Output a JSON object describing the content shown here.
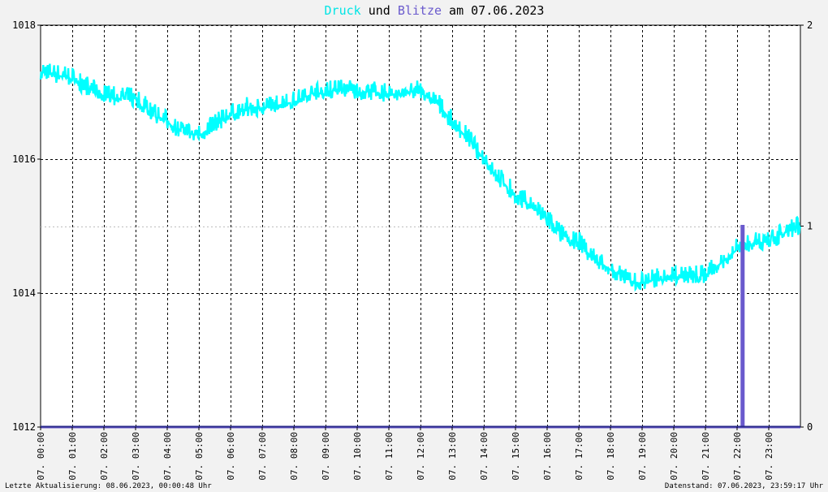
{
  "title": {
    "part1": "Druck",
    "part2": " und ",
    "part3": "Blitze",
    "part4": " am 07.06.2023"
  },
  "colors": {
    "pressure": "#00ffff",
    "lightning": "#6a5acd",
    "baseline": "#2a2a8a",
    "grid": "#000000",
    "background": "#f2f2f2",
    "plot_background": "#ffffff"
  },
  "footer": {
    "left": "Letzte Aktualisierung: 08.06.2023, 00:00:48 Uhr",
    "right": "Datenstand: 07.06.2023, 23:59:17 Uhr"
  },
  "chart_data": {
    "type": "line",
    "title": "Druck und Blitze am 07.06.2023",
    "x_unit": "hours",
    "xlim": [
      0,
      24
    ],
    "x_ticks": [
      0,
      1,
      2,
      3,
      4,
      5,
      6,
      7,
      8,
      9,
      10,
      11,
      12,
      13,
      14,
      15,
      16,
      17,
      18,
      19,
      20,
      21,
      22,
      23
    ],
    "x_tick_labels": [
      "07. 00:00",
      "07. 01:00",
      "07. 02:00",
      "07. 03:00",
      "07. 04:00",
      "07. 05:00",
      "07. 06:00",
      "07. 07:00",
      "07. 08:00",
      "07. 09:00",
      "07. 10:00",
      "07. 11:00",
      "07. 12:00",
      "07. 13:00",
      "07. 14:00",
      "07. 15:00",
      "07. 16:00",
      "07. 17:00",
      "07. 18:00",
      "07. 19:00",
      "07. 20:00",
      "07. 21:00",
      "07. 22:00",
      "07. 23:00"
    ],
    "y_left": {
      "range": [
        1012,
        1018
      ],
      "ticks": [
        1012,
        1014,
        1016,
        1018
      ]
    },
    "y_right": {
      "range": [
        0,
        2
      ],
      "ticks": [
        0,
        1,
        2
      ]
    },
    "grid": true,
    "series": [
      {
        "name": "Druck",
        "axis": "left",
        "x": [
          0,
          0.5,
          1,
          1.5,
          2,
          2.5,
          3,
          3.5,
          4,
          4.5,
          5,
          5.5,
          6,
          6.5,
          7,
          7.5,
          8,
          8.5,
          9,
          9.5,
          10,
          10.5,
          11,
          11.5,
          12,
          12.5,
          13,
          13.5,
          14,
          14.5,
          15,
          15.5,
          16,
          16.5,
          17,
          17.5,
          18,
          18.5,
          19,
          19.5,
          20,
          20.5,
          21,
          21.5,
          22,
          22.5,
          23,
          23.5,
          24
        ],
        "y": [
          1017.3,
          1017.25,
          1017.2,
          1017.05,
          1016.95,
          1016.9,
          1016.9,
          1016.7,
          1016.55,
          1016.4,
          1016.35,
          1016.5,
          1016.65,
          1016.75,
          1016.75,
          1016.8,
          1016.85,
          1016.95,
          1017.0,
          1017.05,
          1017.0,
          1017.0,
          1016.95,
          1017.0,
          1017.0,
          1016.85,
          1016.55,
          1016.3,
          1016.0,
          1015.7,
          1015.45,
          1015.3,
          1015.1,
          1014.85,
          1014.75,
          1014.5,
          1014.35,
          1014.2,
          1014.15,
          1014.2,
          1014.25,
          1014.25,
          1014.25,
          1014.45,
          1014.65,
          1014.75,
          1014.75,
          1014.9,
          1015.0
        ]
      },
      {
        "name": "Blitze",
        "axis": "right",
        "x": [
          0,
          22.15,
          22.15,
          22.2,
          22.2,
          24
        ],
        "y": [
          0,
          0,
          1,
          1,
          0,
          0
        ]
      }
    ]
  }
}
